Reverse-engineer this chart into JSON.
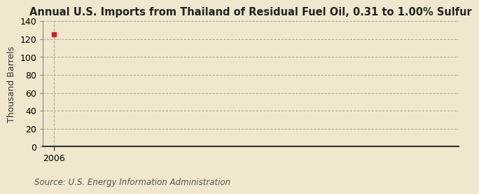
{
  "title": "Annual U.S. Imports from Thailand of Residual Fuel Oil, 0.31 to 1.00% Sulfur",
  "ylabel": "Thousand Barrels",
  "source": "Source: U.S. Energy Information Administration",
  "x_data": [
    2006
  ],
  "y_data": [
    125
  ],
  "marker_color": "#cc2222",
  "ylim": [
    0,
    140
  ],
  "yticks": [
    0,
    20,
    40,
    60,
    80,
    100,
    120,
    140
  ],
  "xlim": [
    2005.5,
    2025
  ],
  "background_color_top": "#f5ead0",
  "background_color": "#f0e8ce",
  "grid_color": "#b0a898",
  "vline_color": "#b0a898",
  "spine_bottom_color": "#333333",
  "title_fontsize": 10.5,
  "tick_fontsize": 9,
  "ylabel_fontsize": 9,
  "source_fontsize": 8.5
}
